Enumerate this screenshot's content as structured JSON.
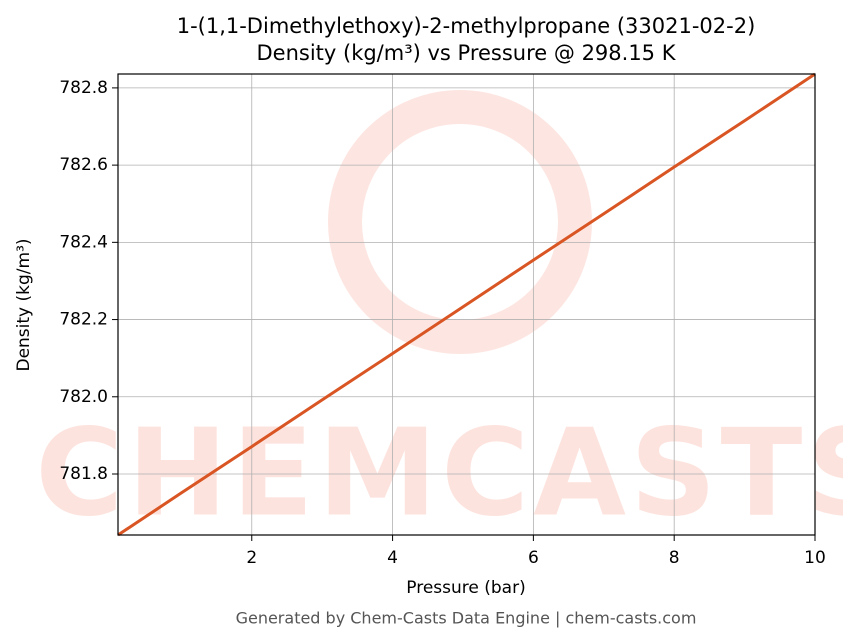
{
  "chart_data": {
    "type": "line",
    "title": "1-(1,1-Dimethylethoxy)-2-methylpropane (33021-02-2)",
    "subtitle": "Density (kg/m³) vs Pressure @ 298.15 K",
    "x_label": "Pressure (bar)",
    "y_label": "Density (kg/m³)",
    "watermark": "CHEMCASTS",
    "footer": "Generated by Chem-Casts Data Engine | chem-casts.com",
    "x": [
      0.1,
      1,
      2,
      3,
      4,
      5,
      6,
      7,
      8,
      9,
      10
    ],
    "series": [
      {
        "name": "Density",
        "color": "#d95624",
        "values": [
          781.642,
          781.751,
          781.871,
          781.992,
          782.112,
          782.233,
          782.354,
          782.474,
          782.595,
          782.715,
          782.836
        ]
      }
    ],
    "xlim": [
      0.1,
      10
    ],
    "ylim": [
      781.642,
      782.836
    ],
    "xticks": [
      2,
      4,
      6,
      8,
      10
    ],
    "yticks": [
      {
        "value": 781.8,
        "label": "781.8"
      },
      {
        "value": 782,
        "label": "782.0"
      },
      {
        "value": 782.2,
        "label": "782.2"
      },
      {
        "value": 782.4,
        "label": "782.4"
      },
      {
        "value": 782.6,
        "label": "782.6"
      },
      {
        "value": 782.8,
        "label": "782.8"
      }
    ],
    "grid": true
  }
}
